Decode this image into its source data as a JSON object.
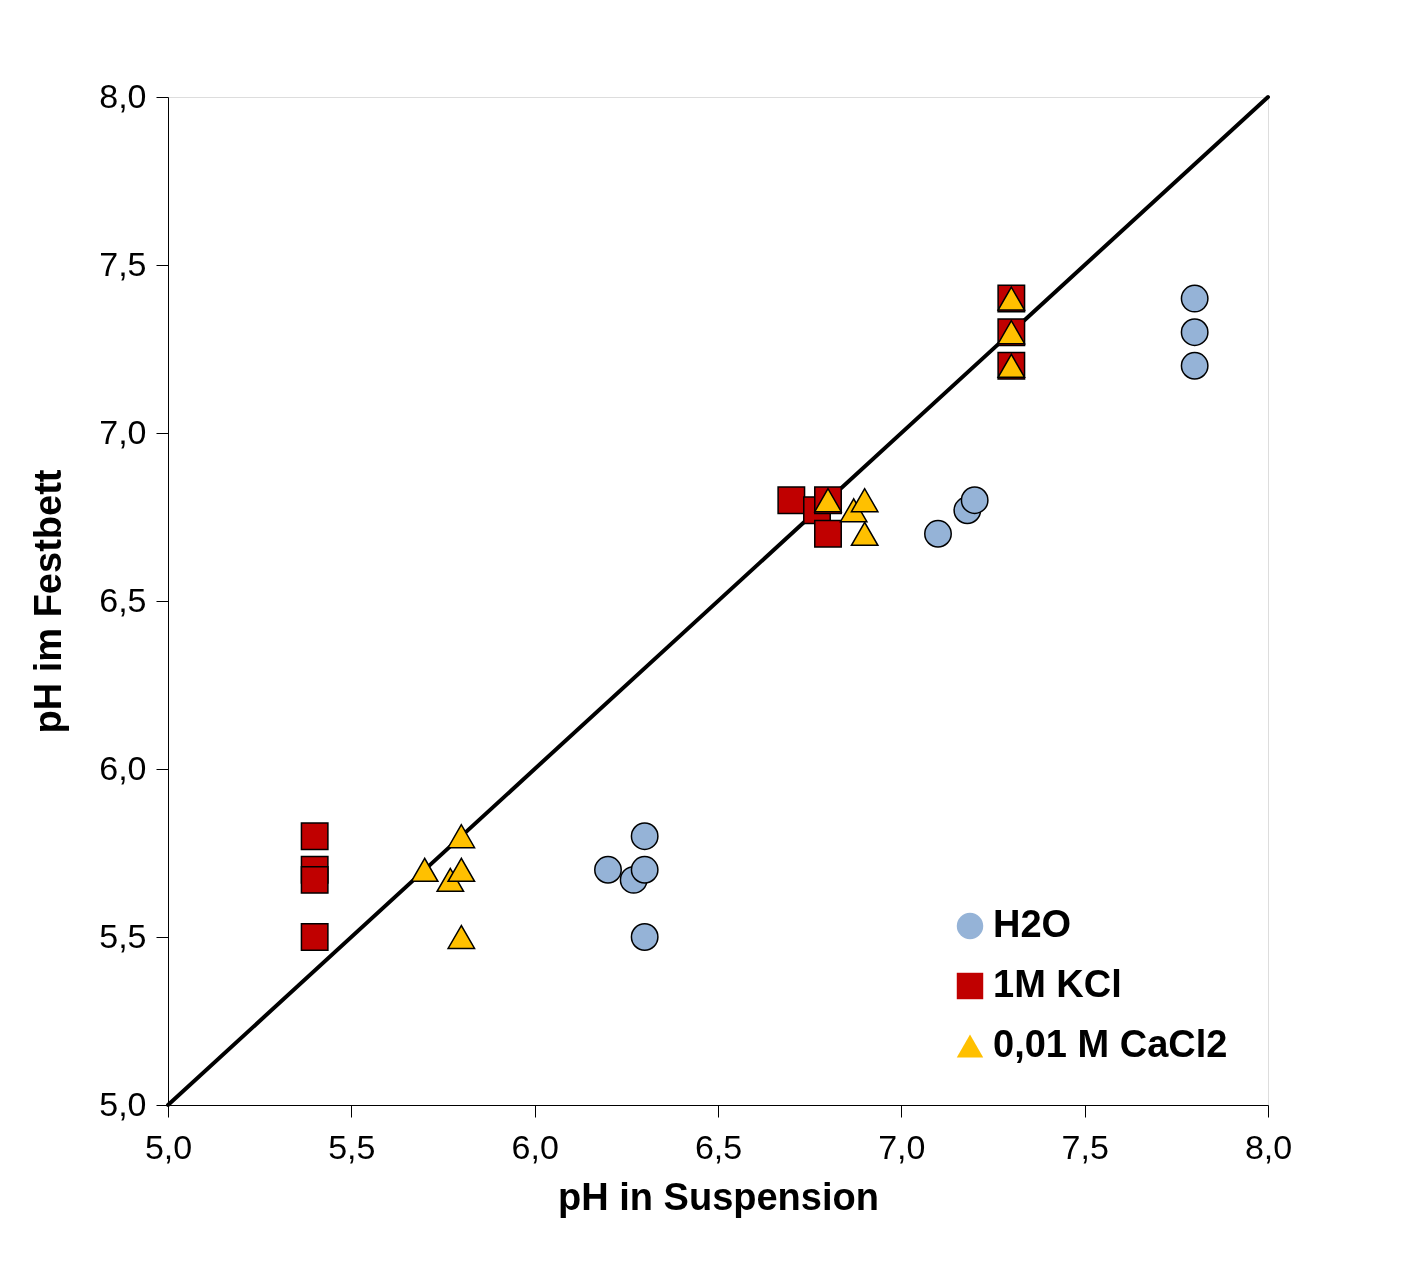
{
  "chart_data": {
    "type": "scatter",
    "xlabel": "pH in Suspension",
    "ylabel": "pH im Festbett",
    "xlim": [
      5,
      8
    ],
    "ylim": [
      5,
      8
    ],
    "xticks": [
      {
        "value": 5,
        "label": "5,0"
      },
      {
        "value": 5.5,
        "label": "5,5"
      },
      {
        "value": 6,
        "label": "6,0"
      },
      {
        "value": 6.5,
        "label": "6,5"
      },
      {
        "value": 7,
        "label": "7,0"
      },
      {
        "value": 7.5,
        "label": "7,5"
      },
      {
        "value": 8,
        "label": "8,0"
      }
    ],
    "yticks": [
      {
        "value": 5,
        "label": "5,0"
      },
      {
        "value": 5.5,
        "label": "5,5"
      },
      {
        "value": 6,
        "label": "6,0"
      },
      {
        "value": 6.5,
        "label": "6,5"
      },
      {
        "value": 7,
        "label": "7,0"
      },
      {
        "value": 7.5,
        "label": "7,5"
      },
      {
        "value": 8,
        "label": "8,0"
      }
    ],
    "grid": false,
    "legend": "bottom right",
    "series": [
      {
        "name": "H2O",
        "marker": "circle",
        "color": "#95b3d7",
        "x": [
          6.2,
          6.27,
          6.3,
          6.3,
          6.3,
          7.1,
          7.18,
          7.2,
          7.8,
          7.8,
          7.8
        ],
        "values": [
          5.7,
          5.67,
          5.8,
          5.7,
          5.5,
          6.7,
          6.77,
          6.8,
          7.4,
          7.3,
          7.2
        ]
      },
      {
        "name": "1M KCl",
        "marker": "square",
        "color": "#c00000",
        "x": [
          5.4,
          5.4,
          5.4,
          5.4,
          6.7,
          6.77,
          6.8,
          6.8,
          7.3,
          7.3,
          7.3
        ],
        "values": [
          5.8,
          5.7,
          5.67,
          5.5,
          6.8,
          6.77,
          6.8,
          6.7,
          7.4,
          7.3,
          7.2
        ]
      },
      {
        "name": "0,01 M CaCl2",
        "marker": "triangle",
        "color": "#ffc000",
        "x": [
          5.7,
          5.77,
          5.8,
          5.8,
          5.8,
          6.8,
          6.87,
          6.9,
          6.9,
          7.3,
          7.3,
          7.3
        ],
        "values": [
          5.7,
          5.67,
          5.8,
          5.7,
          5.5,
          6.8,
          6.77,
          6.8,
          6.7,
          7.4,
          7.3,
          7.2
        ]
      },
      {
        "type": "line",
        "line_style": "solid",
        "color": "#000000",
        "x": [
          5,
          8
        ],
        "values": [
          5,
          8
        ]
      }
    ]
  }
}
